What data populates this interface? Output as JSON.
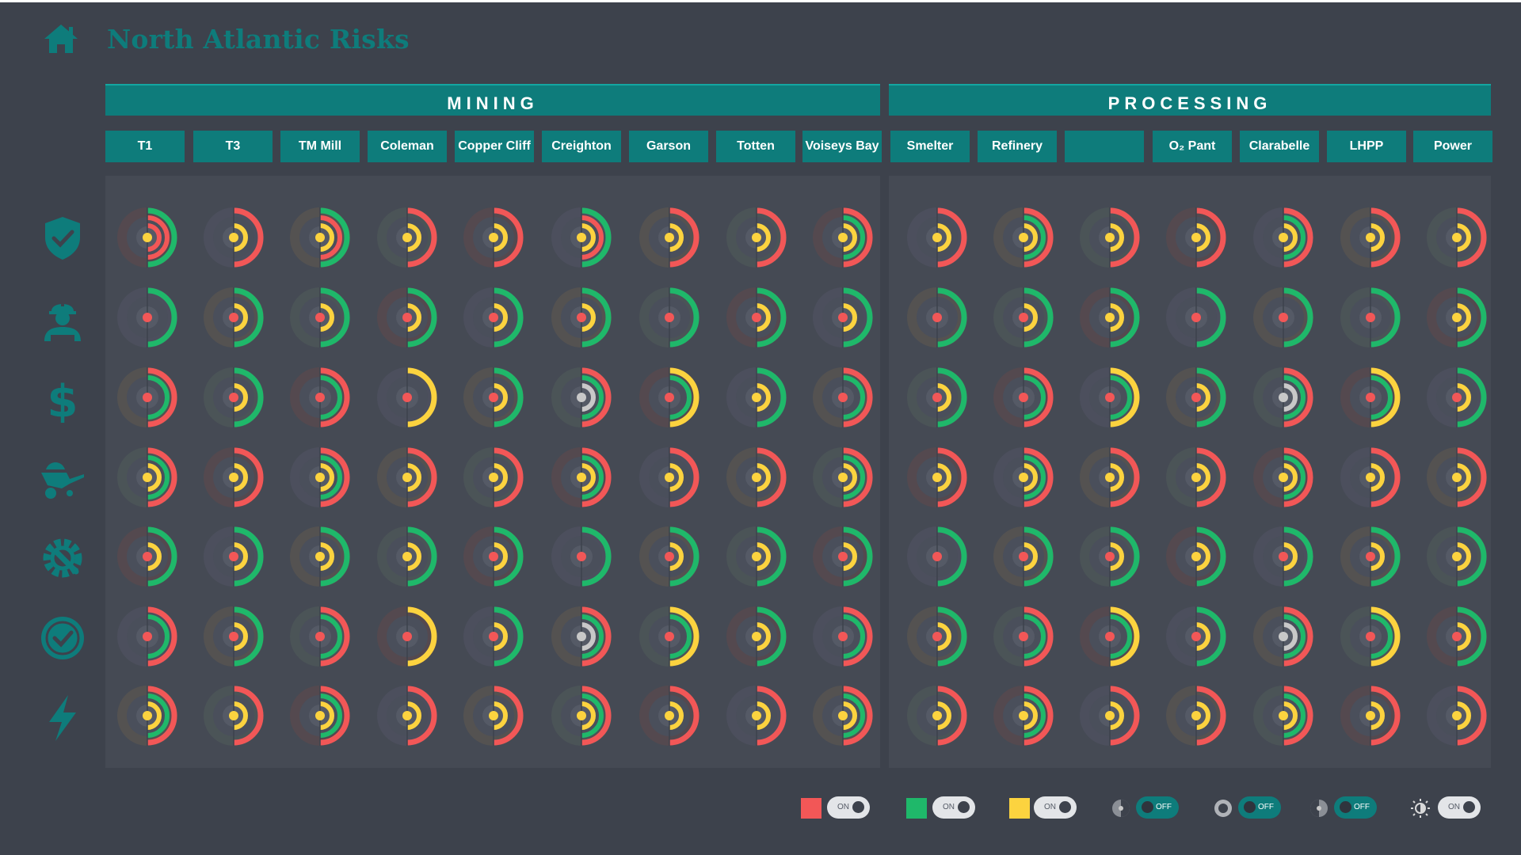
{
  "app": {
    "title": "North Atlantic Risks",
    "accent_color": "#0e7c7b",
    "background_color": "#3d424c"
  },
  "groups": [
    {
      "label": "MINING",
      "columns": [
        "T1",
        "T3",
        "TM Mill",
        "Coleman",
        "Copper Cliff",
        "Creighton",
        "Garson",
        "Totten",
        "Voiseys Bay"
      ]
    },
    {
      "label": "PROCESSING",
      "columns": [
        "Smelter",
        "Refinery",
        "",
        "O₂ Pant",
        "Clarabelle",
        "LHPP",
        "Power"
      ]
    }
  ],
  "row_icons": [
    "shield-check-icon",
    "worker-hardhat-icon",
    "dollar-icon",
    "wheelbarrow-icon",
    "gear-wrench-icon",
    "quality-badge-icon",
    "lightning-icon"
  ],
  "status_colors": {
    "red": "#f25757",
    "green": "#1fb86a",
    "yellow": "#fcd33f",
    "grey": "#c8c8c8"
  },
  "grid_note": "rows correspond to row_icons, columns to all group columns in order; each cell gives [outer ring, middle ring, inner ring, center dot] status",
  "grid": [
    [
      [
        "g",
        "r",
        "r",
        "y"
      ],
      [
        "r",
        "",
        "y",
        "y"
      ],
      [
        "g",
        "r",
        "y",
        "y"
      ],
      [
        "r",
        "",
        "y",
        "y"
      ],
      [
        "r",
        "",
        "y",
        "y"
      ],
      [
        "g",
        "r",
        "y",
        "y"
      ],
      [
        "r",
        "",
        "y",
        "y"
      ],
      [
        "r",
        "",
        "y",
        "y"
      ],
      [
        "r",
        "g",
        "y",
        "y"
      ],
      [
        "r",
        "",
        "y",
        "y"
      ],
      [
        "r",
        "g",
        "y",
        "y"
      ],
      [
        "r",
        "",
        "y",
        "y"
      ],
      [
        "r",
        "",
        "y",
        "y"
      ],
      [
        "r",
        "g",
        "y",
        "y"
      ],
      [
        "r",
        "",
        "y",
        "y"
      ],
      [
        "r",
        "",
        "y",
        "y"
      ]
    ],
    [
      [
        "g",
        "",
        "",
        "r"
      ],
      [
        "g",
        "",
        "y",
        "r"
      ],
      [
        "g",
        "",
        "y",
        "r"
      ],
      [
        "g",
        "",
        "y",
        "r"
      ],
      [
        "g",
        "",
        "y",
        "r"
      ],
      [
        "g",
        "",
        "y",
        "r"
      ],
      [
        "g",
        "",
        "",
        "r"
      ],
      [
        "g",
        "",
        "y",
        "r"
      ],
      [
        "g",
        "",
        "y",
        "r"
      ],
      [
        "g",
        "",
        "",
        "r"
      ],
      [
        "g",
        "",
        "y",
        "r"
      ],
      [
        "g",
        "",
        "y",
        "y"
      ],
      [
        "g",
        "",
        "",
        "r"
      ],
      [
        "g",
        "",
        "",
        "r"
      ],
      [
        "g",
        "",
        "",
        "r"
      ],
      [
        "g",
        "",
        "y",
        "y"
      ]
    ],
    [
      [
        "r",
        "g",
        "",
        "r"
      ],
      [
        "g",
        "",
        "y",
        "r"
      ],
      [
        "r",
        "g",
        "",
        "r"
      ],
      [
        "y",
        "",
        "",
        "r"
      ],
      [
        "g",
        "",
        "y",
        "r"
      ],
      [
        "r",
        "g",
        "s",
        "s"
      ],
      [
        "y",
        "g",
        "",
        "r"
      ],
      [
        "g",
        "",
        "y",
        "y"
      ],
      [
        "r",
        "g",
        "",
        "r"
      ],
      [
        "g",
        "",
        "y",
        "r"
      ],
      [
        "r",
        "g",
        "",
        "r"
      ],
      [
        "y",
        "g",
        "",
        "r"
      ],
      [
        "g",
        "",
        "y",
        "r"
      ],
      [
        "r",
        "g",
        "s",
        "s"
      ],
      [
        "y",
        "g",
        "",
        "r"
      ],
      [
        "g",
        "",
        "y",
        "r"
      ]
    ],
    [
      [
        "r",
        "g",
        "y",
        "y"
      ],
      [
        "r",
        "",
        "y",
        "y"
      ],
      [
        "r",
        "g",
        "y",
        "y"
      ],
      [
        "r",
        "",
        "y",
        "y"
      ],
      [
        "r",
        "",
        "y",
        "y"
      ],
      [
        "r",
        "g",
        "y",
        "y"
      ],
      [
        "r",
        "",
        "y",
        "y"
      ],
      [
        "r",
        "",
        "y",
        "y"
      ],
      [
        "r",
        "g",
        "y",
        "y"
      ],
      [
        "r",
        "",
        "y",
        "y"
      ],
      [
        "r",
        "g",
        "y",
        "y"
      ],
      [
        "r",
        "",
        "y",
        "y"
      ],
      [
        "r",
        "",
        "y",
        "y"
      ],
      [
        "r",
        "g",
        "y",
        "y"
      ],
      [
        "r",
        "",
        "y",
        "y"
      ],
      [
        "r",
        "",
        "y",
        "y"
      ]
    ],
    [
      [
        "g",
        "",
        "y",
        "r"
      ],
      [
        "g",
        "",
        "y",
        "r"
      ],
      [
        "g",
        "",
        "y",
        "y"
      ],
      [
        "g",
        "",
        "y",
        "y"
      ],
      [
        "g",
        "",
        "y",
        "r"
      ],
      [
        "g",
        "",
        "",
        "r"
      ],
      [
        "g",
        "",
        "y",
        "r"
      ],
      [
        "g",
        "",
        "y",
        "y"
      ],
      [
        "g",
        "",
        "y",
        "r"
      ],
      [
        "g",
        "",
        "",
        "r"
      ],
      [
        "g",
        "",
        "y",
        "r"
      ],
      [
        "g",
        "",
        "y",
        "r"
      ],
      [
        "g",
        "",
        "y",
        "y"
      ],
      [
        "g",
        "",
        "y",
        "r"
      ],
      [
        "g",
        "",
        "y",
        "r"
      ],
      [
        "g",
        "",
        "y",
        "y"
      ]
    ],
    [
      [
        "r",
        "g",
        "",
        "r"
      ],
      [
        "g",
        "",
        "y",
        "r"
      ],
      [
        "r",
        "g",
        "",
        "r"
      ],
      [
        "y",
        "",
        "",
        "r"
      ],
      [
        "g",
        "",
        "y",
        "r"
      ],
      [
        "r",
        "g",
        "s",
        "s"
      ],
      [
        "y",
        "g",
        "",
        "r"
      ],
      [
        "g",
        "",
        "y",
        "y"
      ],
      [
        "r",
        "g",
        "",
        "r"
      ],
      [
        "g",
        "",
        "y",
        "r"
      ],
      [
        "r",
        "g",
        "",
        "r"
      ],
      [
        "y",
        "g",
        "",
        "r"
      ],
      [
        "g",
        "",
        "y",
        "r"
      ],
      [
        "r",
        "g",
        "s",
        "s"
      ],
      [
        "y",
        "g",
        "",
        "r"
      ],
      [
        "g",
        "",
        "y",
        "r"
      ]
    ],
    [
      [
        "r",
        "g",
        "y",
        "y"
      ],
      [
        "r",
        "",
        "y",
        "y"
      ],
      [
        "r",
        "g",
        "y",
        "y"
      ],
      [
        "r",
        "",
        "y",
        "y"
      ],
      [
        "r",
        "",
        "y",
        "y"
      ],
      [
        "r",
        "g",
        "y",
        "y"
      ],
      [
        "r",
        "",
        "y",
        "y"
      ],
      [
        "r",
        "",
        "y",
        "y"
      ],
      [
        "r",
        "g",
        "y",
        "y"
      ],
      [
        "r",
        "",
        "y",
        "y"
      ],
      [
        "r",
        "g",
        "y",
        "y"
      ],
      [
        "r",
        "",
        "y",
        "y"
      ],
      [
        "r",
        "",
        "y",
        "y"
      ],
      [
        "r",
        "g",
        "y",
        "y"
      ],
      [
        "r",
        "",
        "y",
        "y"
      ],
      [
        "r",
        "",
        "y",
        "y"
      ]
    ]
  ],
  "legend": {
    "red_toggle": "ON",
    "green_toggle": "ON",
    "yellow_toggle": "ON",
    "half_circle_toggle": "OFF",
    "solid_circle_toggle": "OFF",
    "dot_circle_toggle": "OFF",
    "brightness_toggle": "ON"
  }
}
